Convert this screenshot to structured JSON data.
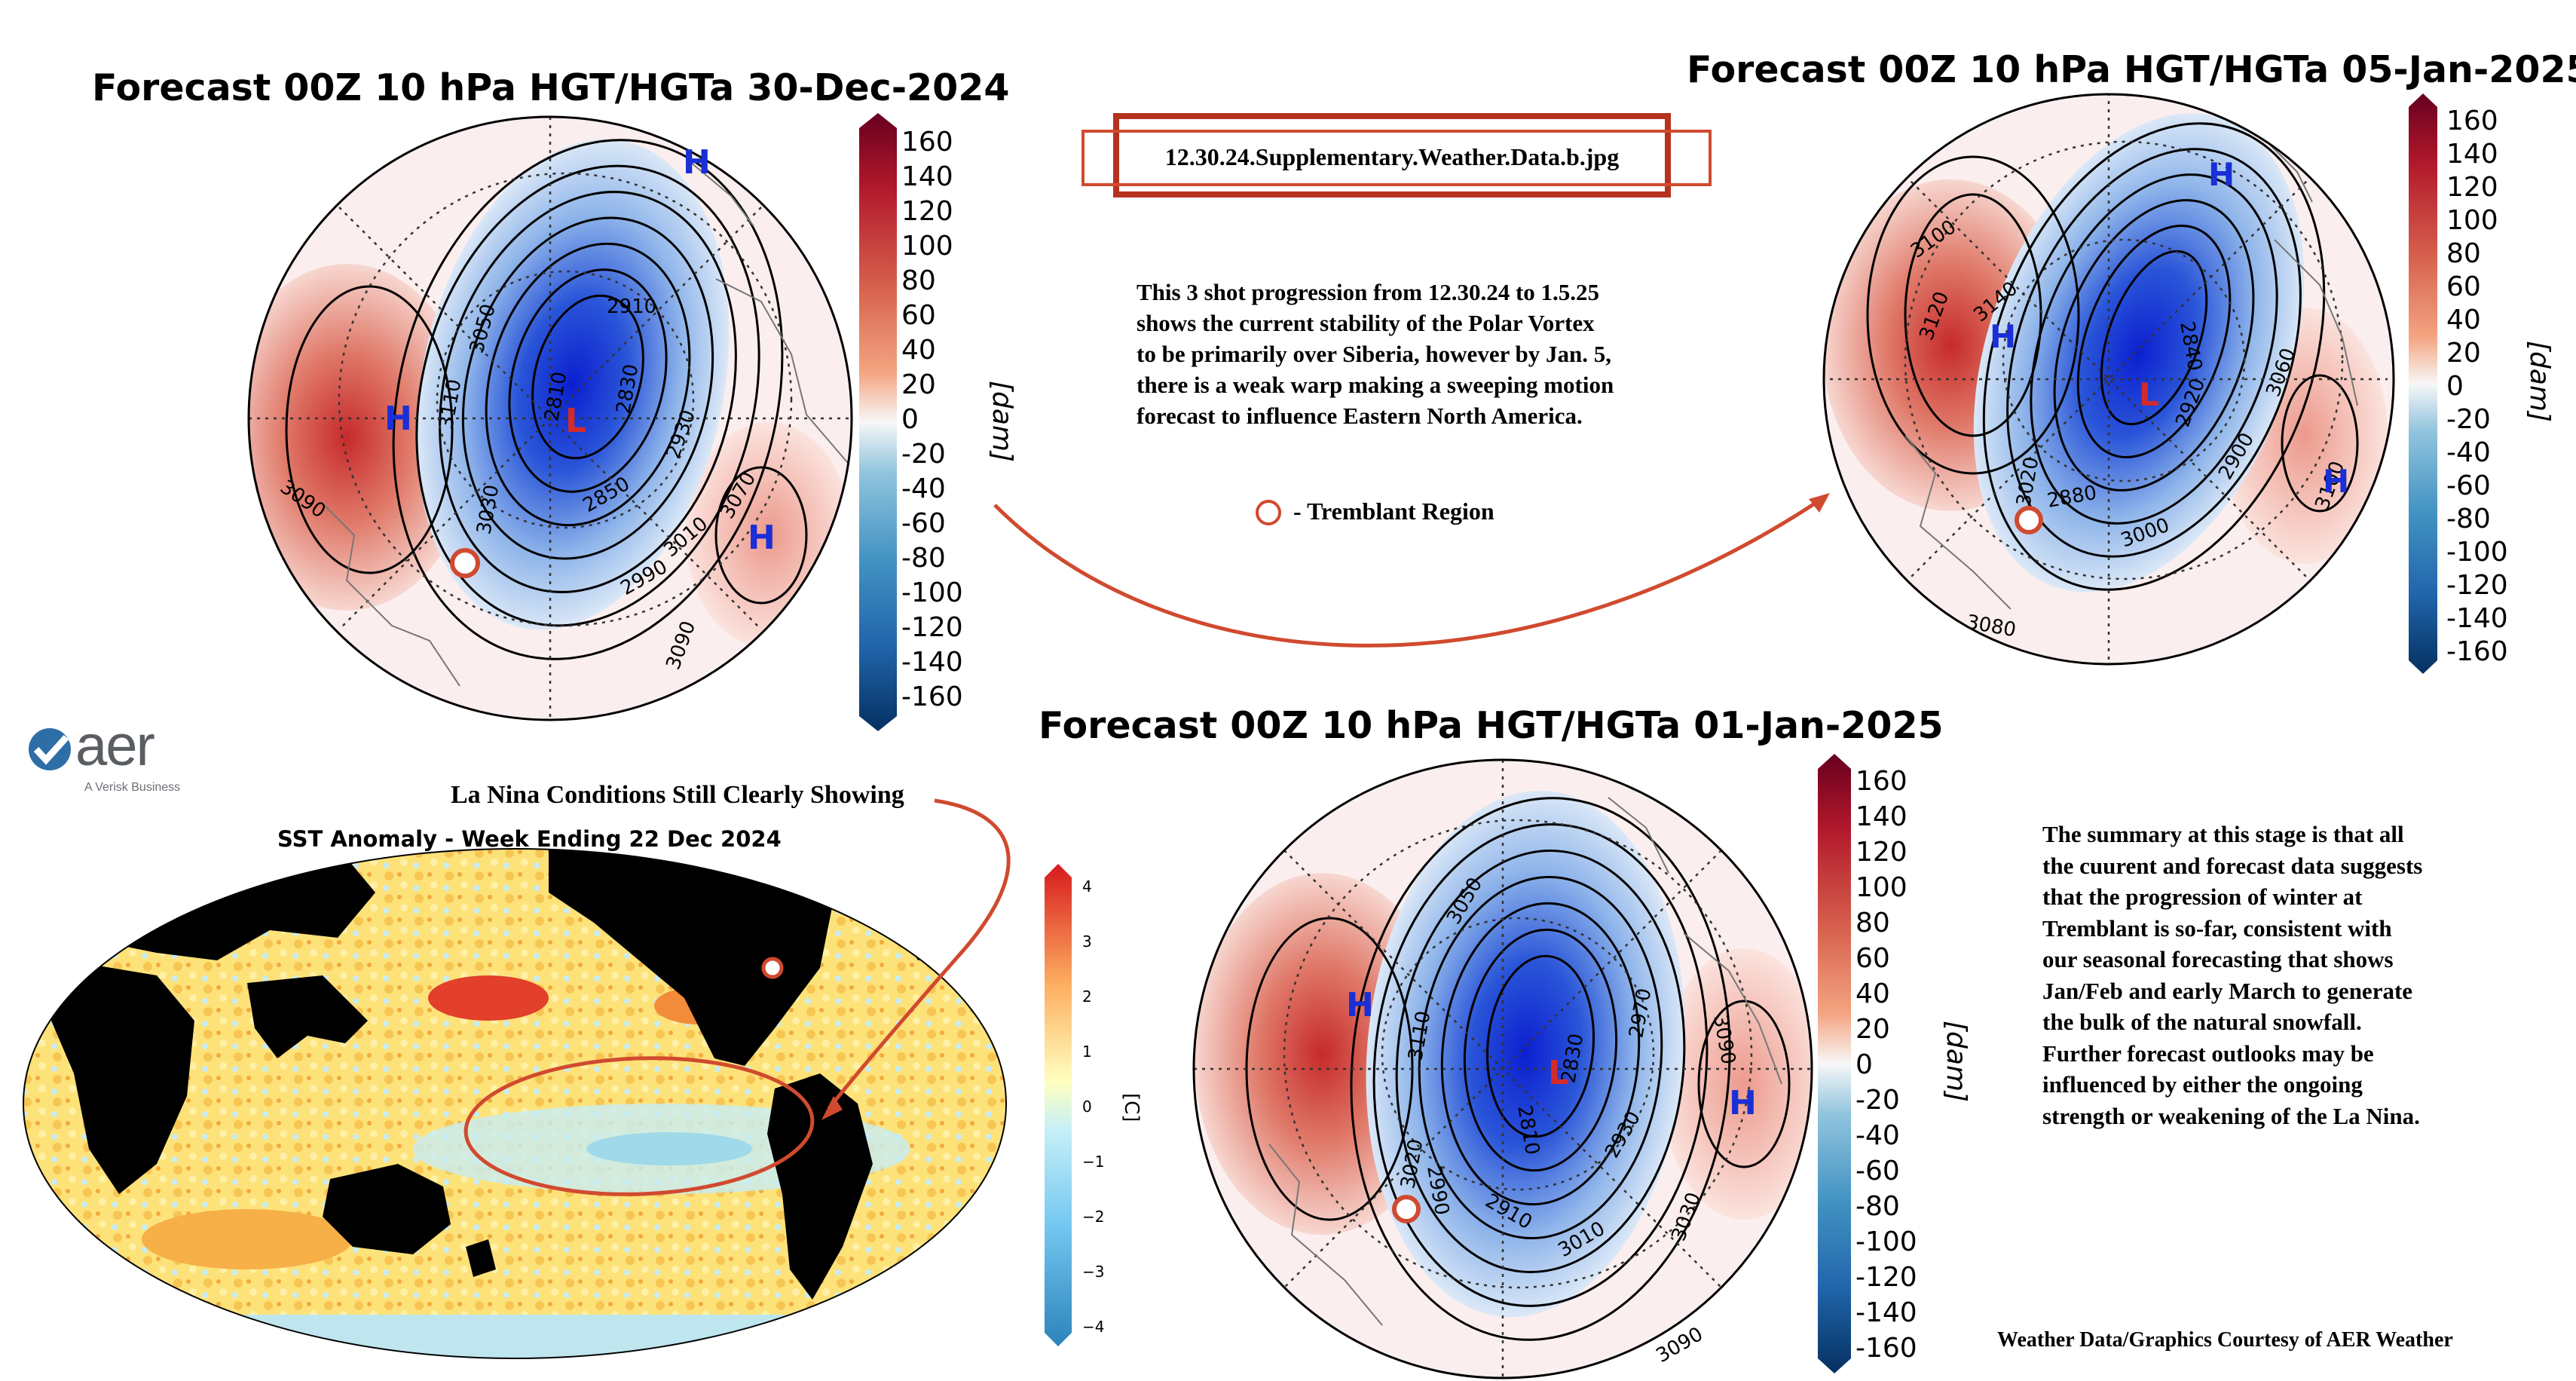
{
  "maps": {
    "dec30": {
      "title": "Forecast 00Z 10 hPa HGT/HGTa 30-Dec-2024",
      "contour_labels": [
        "2910",
        "3050",
        "3110",
        "3090",
        "2810",
        "2830",
        "2930",
        "3010",
        "3070",
        "2990",
        "2850",
        "3030",
        "3090"
      ],
      "highs": [
        "H",
        "H",
        "H"
      ],
      "low": "L"
    },
    "jan05": {
      "title": "Forecast 00Z 10 hPa HGT/HGTa 05-Jan-2025",
      "contour_labels": [
        "3100",
        "3120",
        "3140",
        "2840",
        "2880",
        "3000",
        "3060",
        "3100",
        "3080",
        "2900",
        "2920",
        "3020"
      ],
      "highs": [
        "H",
        "H",
        "H"
      ],
      "low": "L"
    },
    "jan01": {
      "title": "Forecast 00Z 10 hPa HGT/HGTa 01-Jan-2025",
      "contour_labels": [
        "3050",
        "3110",
        "3020",
        "2810",
        "2830",
        "2970",
        "2930",
        "3010",
        "3090",
        "3090",
        "2990",
        "2910",
        "3030"
      ],
      "highs": [
        "H",
        "H"
      ],
      "low": "L"
    }
  },
  "colorbar": {
    "ticks": [
      "160",
      "140",
      "120",
      "100",
      "80",
      "60",
      "40",
      "20",
      "0",
      "-20",
      "-40",
      "-60",
      "-80",
      "-100",
      "-120",
      "-140",
      "-160"
    ],
    "unit": "[dam]",
    "colors": {
      "max": "#67001f",
      "warm": "#d6604d",
      "neutral": "#f7f7f7",
      "cool": "#4393c3",
      "min": "#053061"
    }
  },
  "file_label": "12.30.24.Supplementary.Weather.Data.b.jpg",
  "progression_note": [
    "This 3 shot progression from 12.30.24 to 1.5.25",
    "shows the current stability of the Polar Vortex",
    "to be primarily over Siberia, however by Jan. 5,",
    "there is a weak warp making a sweeping motion",
    "forecast to influence Eastern North America."
  ],
  "legend_marker": "- Tremblant Region",
  "aer_logo": {
    "text": "aer",
    "tagline": "A Verisk Business"
  },
  "la_nina_note": "La Nina Conditions Still Clearly Showing",
  "sst": {
    "title": "SST Anomaly - Week Ending 22 Dec 2024",
    "ticks": [
      "4",
      "3",
      "2",
      "1",
      "0",
      "−1",
      "−2",
      "−3",
      "−4"
    ],
    "unit": "[C]"
  },
  "summary": [
    "The summary at this stage is that all",
    "the cuurent and forecast data suggests",
    "that the progression of winter at",
    "Tremblant is so-far, consistent with",
    "our seasonal forecasting that shows",
    "Jan/Feb and early March to generate",
    "the bulk of the natural snowfall.",
    "Further forecast outlooks may be",
    "influenced by either the ongoing",
    "strength or weakening of the La Nina."
  ],
  "credit": "Weather Data/Graphics Courtesy of AER Weather",
  "accent": "#d04a2f"
}
